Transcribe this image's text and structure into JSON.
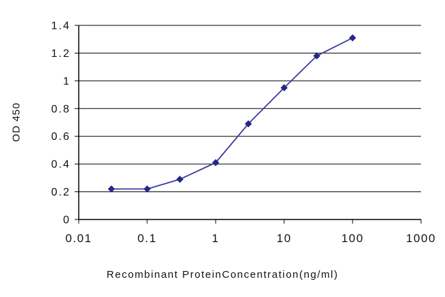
{
  "chart_data": {
    "type": "line",
    "title": "",
    "xlabel": "Recombinant ProteinConcentration(ng/ml)",
    "ylabel": "OD 450",
    "x_scale": "log",
    "xlim": [
      0.01,
      1000
    ],
    "x_ticks": [
      "0.01",
      "0.1",
      "1",
      "10",
      "100",
      "1000"
    ],
    "ylim": [
      0,
      1.4
    ],
    "y_ticks": [
      "0",
      "0.2",
      "0.4",
      "0.6",
      "0.8",
      "1",
      "1.2",
      "1.4"
    ],
    "grid": "horizontal",
    "legend": "none",
    "series": [
      {
        "name": "OD450",
        "x": [
          0.03,
          0.1,
          0.3,
          1,
          3,
          10,
          30,
          100
        ],
        "values": [
          0.22,
          0.22,
          0.29,
          0.41,
          0.69,
          0.95,
          1.18,
          1.31
        ],
        "marker": "diamond",
        "line_color": "#3a3a9e",
        "marker_color": "#26268a"
      }
    ],
    "axis_color": "#000000",
    "grid_color": "#000000",
    "text_color": "#111111",
    "background": "#ffffff"
  }
}
